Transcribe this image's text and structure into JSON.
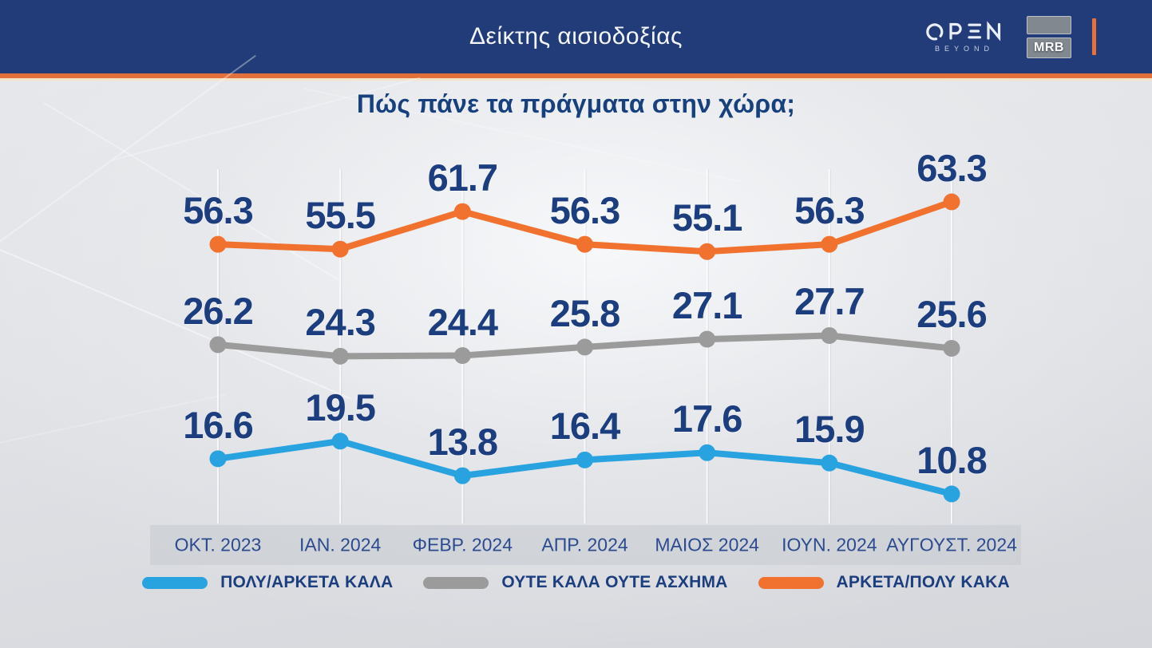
{
  "header": {
    "title": "Δείκτης αισιοδοξίας",
    "open_logo": {
      "name": "OPEN",
      "tagline": "BEYOND"
    },
    "mrb_label": "MRB"
  },
  "subtitle": "Πώς πάνε τα πράγματα στην χώρα;",
  "chart_data": {
    "type": "line",
    "title": "Πώς πάνε τα πράγματα στην χώρα;",
    "categories": [
      "ΟΚΤ. 2023",
      "ΙΑΝ. 2024",
      "ΦΕΒΡ. 2024",
      "ΑΠΡ. 2024",
      "ΜΑΙΟΣ 2024",
      "ΙΟΥΝ. 2024",
      "ΑΥΓΟΥΣΤ. 2024"
    ],
    "series": [
      {
        "name": "ΠΟΛΥ/ΑΡΚΕΤΑ ΚΑΛΑ",
        "color": "#29a2e0",
        "values": [
          16.6,
          19.5,
          13.8,
          16.4,
          17.6,
          15.9,
          10.8
        ]
      },
      {
        "name": "ΟΥΤΕ ΚΑΛΑ ΟΥΤΕ ΑΣΧΗΜΑ",
        "color": "#9b9b9b",
        "values": [
          26.2,
          24.3,
          24.4,
          25.8,
          27.1,
          27.7,
          25.6
        ]
      },
      {
        "name": "ΑΡΚΕΤΑ/ΠΟΛΥ ΚΑΚΑ",
        "color": "#f0722e",
        "values": [
          56.3,
          55.5,
          61.7,
          56.3,
          55.1,
          56.3,
          63.3
        ]
      }
    ],
    "value_labels": "shown above each point",
    "grid": "faint vertical lines per category",
    "legend_position": "bottom",
    "ylim_note": "no numeric axis shown; three series drawn in separate bands"
  },
  "colors": {
    "header_bg": "#213c78",
    "divider_orange": "#e2703a",
    "divider_pale": "#f6e2c6",
    "title_text": "#f4f6fa",
    "navy_text": "#1c3e7e",
    "axis_label_text": "#2c4b8f",
    "axis_band_bg": "#c4c7cd",
    "line_blue": "#29a2e0",
    "line_gray": "#9b9b9b",
    "line_orange": "#f0722e",
    "background": "#e0e2e6"
  }
}
